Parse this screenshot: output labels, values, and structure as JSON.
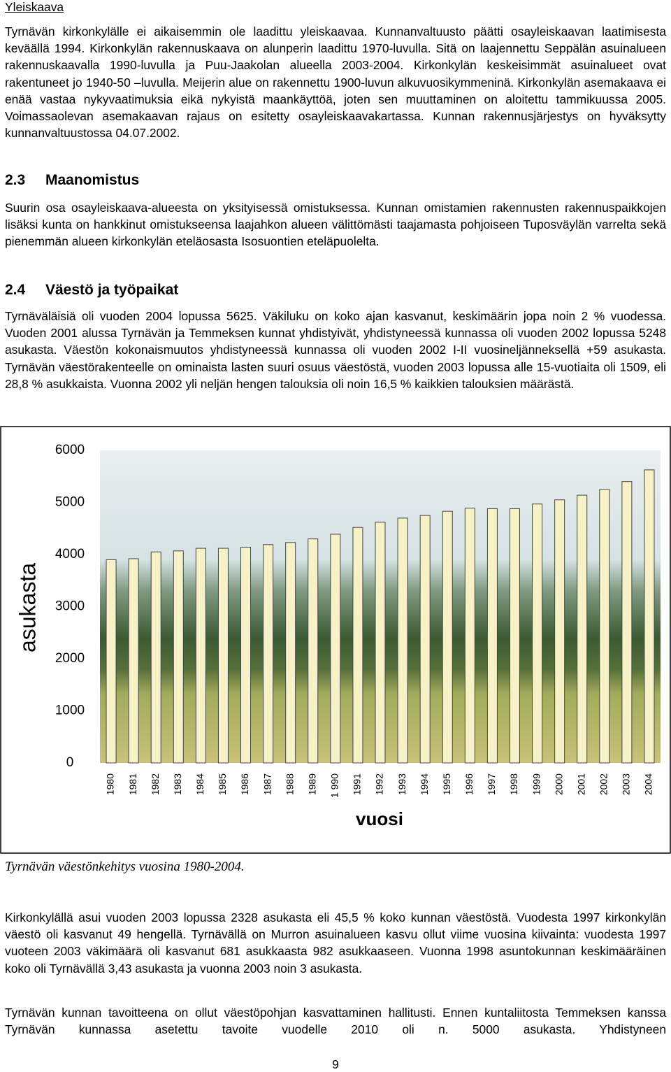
{
  "header": "Yleiskaava",
  "paragraphs_1": [
    "Tyrnävän kirkonkylälle ei aikaisemmin ole laadittu yleiskaavaa. Kunnanvaltuusto päätti osayleiskaavan laatimisesta keväällä 1994. Kirkonkylän rakennuskaava on alunperin laadittu 1970-luvulla. Sitä on laajennettu Seppälän asuinalueen rakennuskaavalla 1990-luvulla ja Puu-Jaakolan alueella 2003-2004. Kirkonkylän keskeisimmät asuinalueet ovat rakentuneet jo 1940-50 –luvulla. Meijerin alue on rakennettu 1900-luvun alkuvuosikymmeninä. Kirkonkylän asemakaava ei enää vastaa nykyvaatimuksia eikä nykyistä maankäyttöä, joten sen muuttaminen on aloitettu tammikuussa 2005. Voimassaolevan asemakaavan rajaus on esitetty osayleiskaavakartassa. Kunnan rakennusjärjestys on hyväksytty kunnanvaltuustossa 04.07.2002."
  ],
  "sections": [
    {
      "number": "2.3",
      "title": "Maanomistus",
      "paragraphs": [
        "Suurin osa osayleiskaava-alueesta on yksityisessä omistuksessa. Kunnan omistamien rakennusten rakennuspaikkojen lisäksi kunta on hankkinut omistukseensa laajahkon alueen välittömästi taajamasta pohjoiseen Tuposväylän varrelta sekä pienemmän alueen kirkonkylän eteläosasta Isosuontien eteläpuolelta."
      ]
    },
    {
      "number": "2.4",
      "title": "Väestö ja työpaikat",
      "paragraphs": [
        "Tyrnäväläisiä oli vuoden 2004 lopussa 5625. Väkiluku on koko ajan kasvanut, keskimäärin jopa noin 2 % vuodessa. Vuoden 2001 alussa Tyrnävän ja Temmeksen kunnat yhdistyivät, yhdistyneessä kunnassa oli vuoden 2002 lopussa 5248 asukasta. Väestön kokonaismuutos yhdistyneessä kunnassa oli vuoden 2002 I-II vuosineljänneksellä +59 asukasta. Tyrnävän väestörakenteelle on ominaista lasten suuri osuus väestöstä, vuoden 2003 lopussa alle 15-vuotiaita oli 1509, eli  28,8 % asukkaista. Vuonna 2002 yli neljän hengen talouksia oli noin 16,5 % kaikkien talouksien määrästä."
      ]
    }
  ],
  "chart_data": {
    "type": "bar",
    "y_label": "asukasta",
    "x_label": "vuosi",
    "categories": [
      "1980",
      "1981",
      "1982",
      "1983",
      "1984",
      "1985",
      "1986",
      "1987",
      "1988",
      "1989",
      "1 990",
      "1991",
      "1992",
      "1993",
      "1994",
      "1995",
      "1996",
      "1997",
      "1998",
      "1999",
      "2000",
      "2001",
      "2002",
      "2003",
      "2004"
    ],
    "values": [
      3900,
      3920,
      4050,
      4070,
      4120,
      4120,
      4140,
      4190,
      4230,
      4300,
      4390,
      4520,
      4620,
      4700,
      4750,
      4830,
      4890,
      4880,
      4880,
      4970,
      5050,
      5140,
      5250,
      5400,
      5625
    ],
    "color": "#f6f1c6",
    "ylim": [
      0,
      6000
    ],
    "yticks": [
      0,
      1000,
      2000,
      3000,
      4000,
      5000,
      6000
    ],
    "grid": false
  },
  "caption": "Tyrnävän väestönkehitys vuosina 1980-2004.",
  "paragraphs_2": [
    "Kirkonkylällä asui vuoden 2003 lopussa 2328 asukasta eli  45,5 % koko kunnan väestöstä. Vuodesta 1997 kirkonkylän väestö oli kasvanut 49 hengellä. Tyrnävällä on Murron asuinalueen kasvu ollut viime vuosina kiivainta: vuodesta 1997 vuoteen 2003 väkimäärä oli kasvanut 681 asukkaasta 982 asukkaaseen. Vuonna 1998 asuntokunnan keskimääräinen koko oli Tyrnävällä 3,43 asukasta ja vuonna 2003 noin 3 asukasta.",
    "Tyrnävän kunnan tavoitteena on ollut väestöpohjan kasvattaminen hallitusti. Ennen kuntaliitosta Temmeksen kanssa Tyrnävän kunnassa asetettu tavoite vuodelle 2010 oli n. 5000 asukasta. Yhdistyneen"
  ],
  "page_number": "9"
}
